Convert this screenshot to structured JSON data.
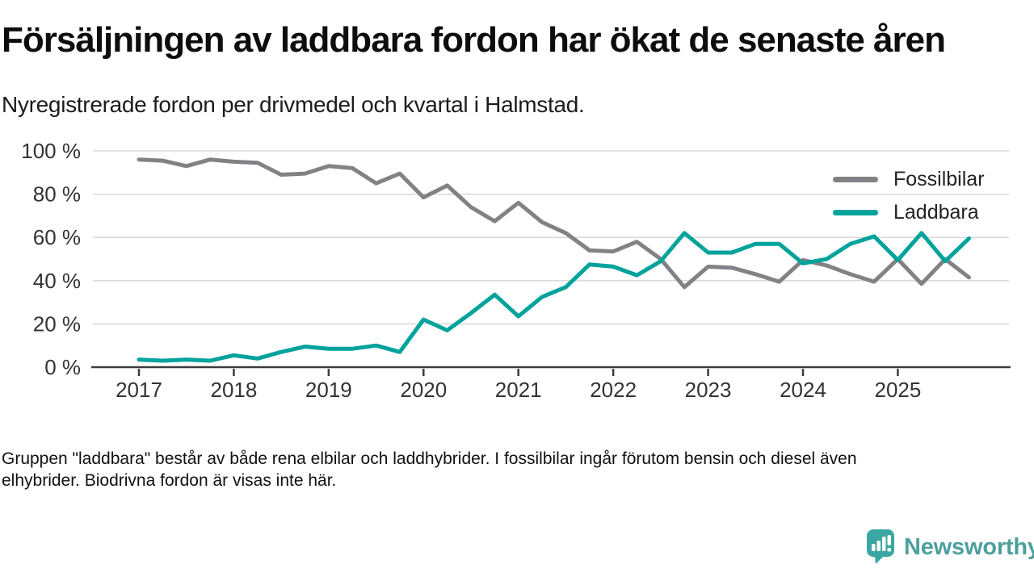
{
  "header": {
    "title": "Försäljningen av laddbara fordon har ökat de senaste åren",
    "subtitle": "Nyregistrerade fordon per drivmedel och kvartal i Halmstad."
  },
  "chart_data": {
    "type": "line",
    "title": "Försäljningen av laddbara fordon har ökat de senaste åren",
    "subtitle": "Nyregistrerade fordon per drivmedel och kvartal i Halmstad.",
    "xlabel": "",
    "ylabel": "",
    "ylim": [
      0,
      100
    ],
    "grid": "horizontal",
    "legend_position": "top-right",
    "y_tick_values": [
      100,
      80,
      60,
      40,
      20,
      0
    ],
    "y_tick_labels": [
      "100 %",
      "80 %",
      "60 %",
      "40 %",
      "20 %",
      "0 %"
    ],
    "x_tick_labels": [
      "2017",
      "2018",
      "2019",
      "2020",
      "2021",
      "2022",
      "2023",
      "2024",
      "2025"
    ],
    "categories": [
      "2017 Q1",
      "2017 Q2",
      "2017 Q3",
      "2017 Q4",
      "2018 Q1",
      "2018 Q2",
      "2018 Q3",
      "2018 Q4",
      "2019 Q1",
      "2019 Q2",
      "2019 Q3",
      "2019 Q4",
      "2020 Q1",
      "2020 Q2",
      "2020 Q3",
      "2020 Q4",
      "2021 Q1",
      "2021 Q2",
      "2021 Q3",
      "2021 Q4",
      "2022 Q1",
      "2022 Q2",
      "2022 Q3",
      "2022 Q4",
      "2023 Q1",
      "2023 Q2",
      "2023 Q3",
      "2023 Q4",
      "2024 Q1",
      "2024 Q2",
      "2024 Q3",
      "2024 Q4",
      "2025 Q1",
      "2025 Q2",
      "2025 Q3",
      "2025 Q4"
    ],
    "series": [
      {
        "name": "Fossilbilar",
        "color": "#828286",
        "values": [
          96,
          95.5,
          93,
          96,
          95,
          94.5,
          89,
          89.5,
          93,
          92,
          85,
          89.5,
          78.5,
          84,
          74,
          67.5,
          76,
          67,
          62,
          54,
          53.5,
          58,
          50,
          37,
          46.5,
          46,
          43,
          39.5,
          49.5,
          47,
          43,
          39.5,
          50,
          38.5,
          50,
          41.5
        ]
      },
      {
        "name": "Laddbara",
        "color": "#00a39c",
        "values": [
          3.5,
          3,
          3.5,
          3,
          5.5,
          4,
          7,
          9.5,
          8.5,
          8.5,
          10,
          7,
          22,
          17,
          25,
          33.5,
          23.5,
          32.5,
          37,
          47.5,
          46.5,
          42.5,
          49,
          62,
          53,
          53,
          57,
          57,
          48,
          50,
          57,
          60.5,
          49.5,
          62,
          49,
          59.5
        ]
      }
    ]
  },
  "footer": {
    "line1": "Gruppen \"laddbara\" består av både rena elbilar och laddhybrider. I fossilbilar ingår förutom bensin och diesel även",
    "line2": "elhybrider. Biodrivna fordon är visas inte här."
  },
  "logo": {
    "text": "Newsworthy"
  },
  "colors": {
    "brand": "#3ba7a2",
    "brand_text": "#4d9f9e",
    "grid": "#d8d8d8",
    "axis": "#3c3c3c",
    "label": "#333333",
    "series_fossil": "#828286",
    "series_laddbara": "#00a39c"
  }
}
